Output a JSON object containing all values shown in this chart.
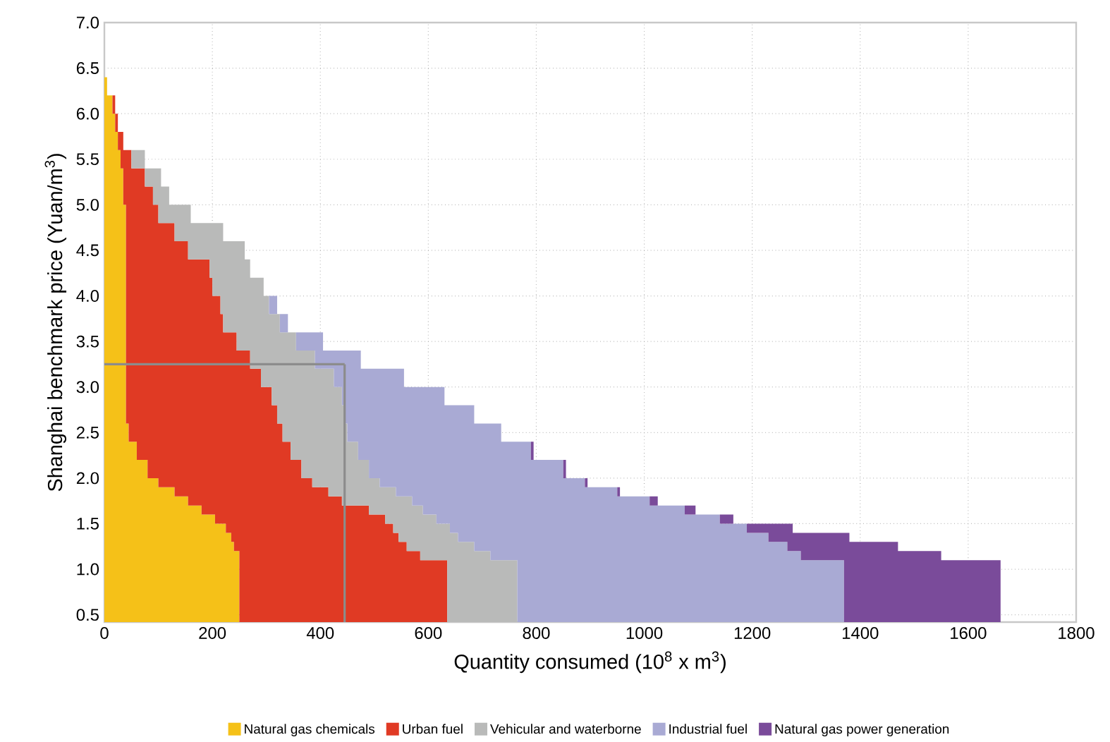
{
  "chart_data": {
    "type": "area",
    "orientation": "horizontal",
    "stacked": true,
    "xlabel": "Quantity consumed (10$^{8}$ x m$^{3}$)",
    "ylabel": "Shanghai benchmark price (Yuan/m$^{3}$)",
    "x": [
      0.42,
      1.1,
      1.2,
      1.3,
      1.4,
      1.5,
      1.6,
      1.7,
      1.8,
      1.9,
      2.0,
      2.2,
      2.4,
      2.6,
      2.8,
      3.0,
      3.2,
      3.4,
      3.6,
      3.8,
      4.0,
      4.2,
      4.4,
      4.6,
      4.8,
      5.0,
      5.2,
      5.4,
      5.6,
      5.8,
      6.0,
      6.2,
      6.4
    ],
    "series": [
      {
        "name": "Natural gas chemicals",
        "color": "#f5c118",
        "values": [
          250,
          250,
          240,
          235,
          225,
          205,
          180,
          155,
          130,
          100,
          80,
          60,
          45,
          40,
          40,
          40,
          40,
          40,
          40,
          40,
          40,
          40,
          40,
          40,
          40,
          35,
          35,
          30,
          25,
          20,
          15,
          5,
          0
        ]
      },
      {
        "name": "Urban fuel",
        "color": "#e03a24",
        "values": [
          385,
          335,
          320,
          310,
          310,
          315,
          310,
          285,
          285,
          285,
          285,
          285,
          285,
          280,
          270,
          250,
          230,
          205,
          180,
          175,
          160,
          155,
          115,
          90,
          60,
          55,
          40,
          20,
          10,
          5,
          5,
          0,
          0
        ]
      },
      {
        "name": "Vehicular and waterborne",
        "color": "#b9bab9",
        "values": [
          130,
          130,
          125,
          110,
          105,
          95,
          100,
          130,
          125,
          125,
          125,
          125,
          120,
          125,
          130,
          135,
          120,
          110,
          105,
          90,
          95,
          75,
          105,
          90,
          60,
          30,
          30,
          25,
          0,
          0,
          0,
          0,
          0
        ]
      },
      {
        "name": "Industrial fuel",
        "color": "#a9aad4",
        "values": [
          605,
          575,
          580,
          575,
          550,
          525,
          485,
          440,
          410,
          380,
          360,
          320,
          285,
          240,
          190,
          130,
          85,
          50,
          15,
          15,
          0,
          0,
          0,
          0,
          0,
          0,
          0,
          0,
          0,
          0,
          0,
          0,
          0
        ]
      },
      {
        "name": "Natural gas power generation",
        "color": "#7a4b9a",
        "values": [
          290,
          260,
          205,
          150,
          85,
          25,
          20,
          15,
          5,
          5,
          5,
          5,
          0,
          0,
          0,
          0,
          0,
          0,
          0,
          0,
          0,
          0,
          0,
          0,
          0,
          0,
          0,
          0,
          0,
          0,
          0,
          0,
          0
        ]
      }
    ],
    "ref_lines": [
      {
        "axis": "y",
        "value": 3.25,
        "color": "#8c8c8c"
      },
      {
        "axis": "x",
        "value": 445,
        "color": "#8c8c8c"
      }
    ],
    "xlim": [
      0,
      1800
    ],
    "xticks": [
      0,
      200,
      400,
      600,
      800,
      1000,
      1200,
      1400,
      1600,
      1800
    ],
    "ylim": [
      0.42,
      7.0
    ],
    "yticks": [
      0.5,
      {
        "value": 1.0,
        "label": "1.0"
      },
      1.5,
      {
        "value": 2.0,
        "label": "2.0"
      },
      2.5,
      {
        "value": 3.0,
        "label": "3.0"
      },
      3.5,
      {
        "value": 4.0,
        "label": "4.0"
      },
      4.5,
      {
        "value": 5.0,
        "label": "5.0"
      },
      5.5,
      {
        "value": 6.0,
        "label": "6.0"
      },
      6.5,
      {
        "value": 7.0,
        "label": "7.0"
      }
    ],
    "grid": true,
    "legend": "bottom"
  }
}
